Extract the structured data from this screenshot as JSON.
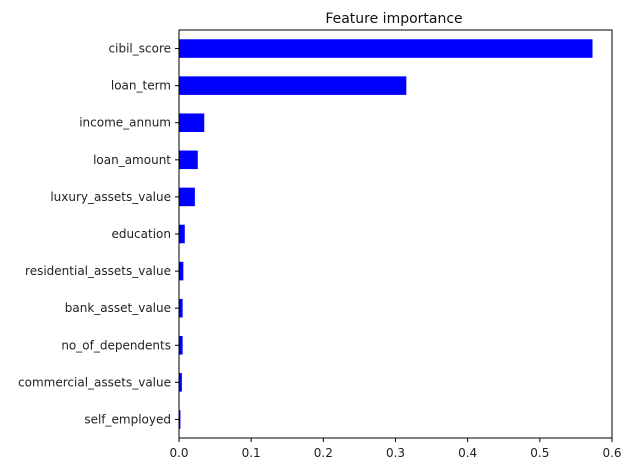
{
  "chart_data": {
    "type": "bar",
    "orientation": "horizontal",
    "title": "Feature importance",
    "xlabel": "",
    "ylabel": "",
    "categories": [
      "cibil_score",
      "loan_term",
      "income_annum",
      "loan_amount",
      "luxury_assets_value",
      "education",
      "residential_assets_value",
      "bank_asset_value",
      "no_of_dependents",
      "commercial_assets_value",
      "self_employed"
    ],
    "values": [
      0.573,
      0.315,
      0.035,
      0.026,
      0.022,
      0.008,
      0.006,
      0.005,
      0.005,
      0.004,
      0.002
    ],
    "xlim": [
      0,
      0.6
    ],
    "xticks": [
      "0.0",
      "0.1",
      "0.2",
      "0.3",
      "0.4",
      "0.5",
      "0.6"
    ],
    "grid": false,
    "legend": "none",
    "bar_color": "#0000ff"
  }
}
